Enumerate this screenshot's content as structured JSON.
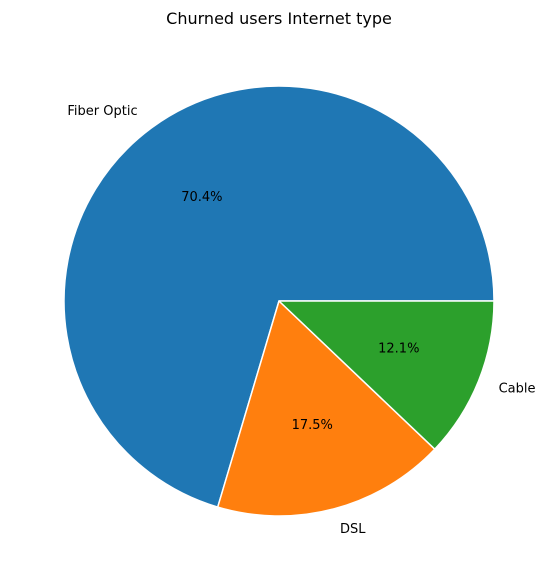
{
  "chart_data": {
    "type": "pie",
    "title": "Churned users Internet type",
    "slices": [
      {
        "label": "Fiber Optic",
        "value": 70.4,
        "pct_label": "70.4%",
        "color": "#1f77b4"
      },
      {
        "label": "DSL",
        "value": 17.5,
        "pct_label": "17.5%",
        "color": "#ff7f0e"
      },
      {
        "label": "Cable",
        "value": 12.1,
        "pct_label": "12.1%",
        "color": "#2ca02c"
      }
    ],
    "start_angle_deg": 0,
    "direction": "counterclockwise",
    "edge_color": "#ffffff"
  }
}
